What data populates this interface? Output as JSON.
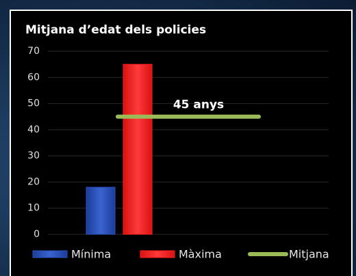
{
  "chart_data": {
    "type": "bar",
    "title": "Mitjana d’edat dels policies",
    "series": [
      {
        "name": "Mínima",
        "color": "#2a52be",
        "values": [
          18
        ]
      },
      {
        "name": "Màxima",
        "color": "#ff2020",
        "values": [
          65
        ]
      },
      {
        "name": "Mitjana",
        "type": "line",
        "color": "#9bbb59",
        "values": [
          45
        ],
        "value_labels": [
          "45 anys"
        ]
      }
    ],
    "ylim": [
      0,
      70
    ],
    "yticks": [
      0,
      10,
      20,
      30,
      40,
      50,
      60,
      70
    ],
    "grid": true,
    "legend": "bottom"
  }
}
